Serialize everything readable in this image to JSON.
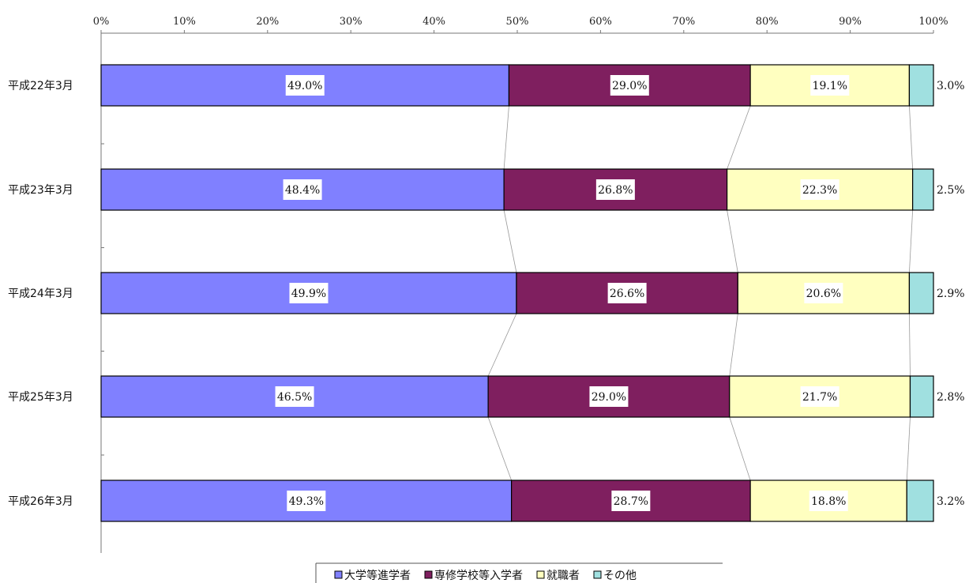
{
  "chart_data": {
    "type": "bar",
    "orientation": "horizontal",
    "stacked": "percent",
    "categories": [
      "平成22年3月",
      "平成23年3月",
      "平成24年3月",
      "平成25年3月",
      "平成26年3月"
    ],
    "series": [
      {
        "name": "大学等進学者",
        "values": [
          49.0,
          48.4,
          49.9,
          46.5,
          49.3
        ],
        "labels": [
          "49.0%",
          "48.4%",
          "49.9%",
          "46.5%",
          "49.3%"
        ],
        "color": "#8080ff"
      },
      {
        "name": "専修学校等入学者",
        "values": [
          29.0,
          26.8,
          26.6,
          29.0,
          28.7
        ],
        "labels": [
          "29.0%",
          "26.8%",
          "26.6%",
          "29.0%",
          "28.7%"
        ],
        "color": "#7f1f5f"
      },
      {
        "name": "就職者",
        "values": [
          19.1,
          22.3,
          20.6,
          21.7,
          18.8
        ],
        "labels": [
          "19.1%",
          "22.3%",
          "20.6%",
          "21.7%",
          "18.8%"
        ],
        "color": "#ffffc0"
      },
      {
        "name": "その他",
        "values": [
          3.0,
          2.5,
          2.9,
          2.8,
          3.2
        ],
        "labels": [
          "3.0%",
          "2.5%",
          "2.9%",
          "2.8%",
          "3.2%"
        ],
        "color": "#a0e0e0"
      }
    ],
    "xlim": [
      0,
      100
    ],
    "x_ticks": [
      "0%",
      "10%",
      "20%",
      "30%",
      "40%",
      "50%",
      "60%",
      "70%",
      "80%",
      "90%",
      "100%"
    ],
    "x_axis_position": "top",
    "series_lines": true,
    "grid": false,
    "legend_position": "bottom"
  }
}
